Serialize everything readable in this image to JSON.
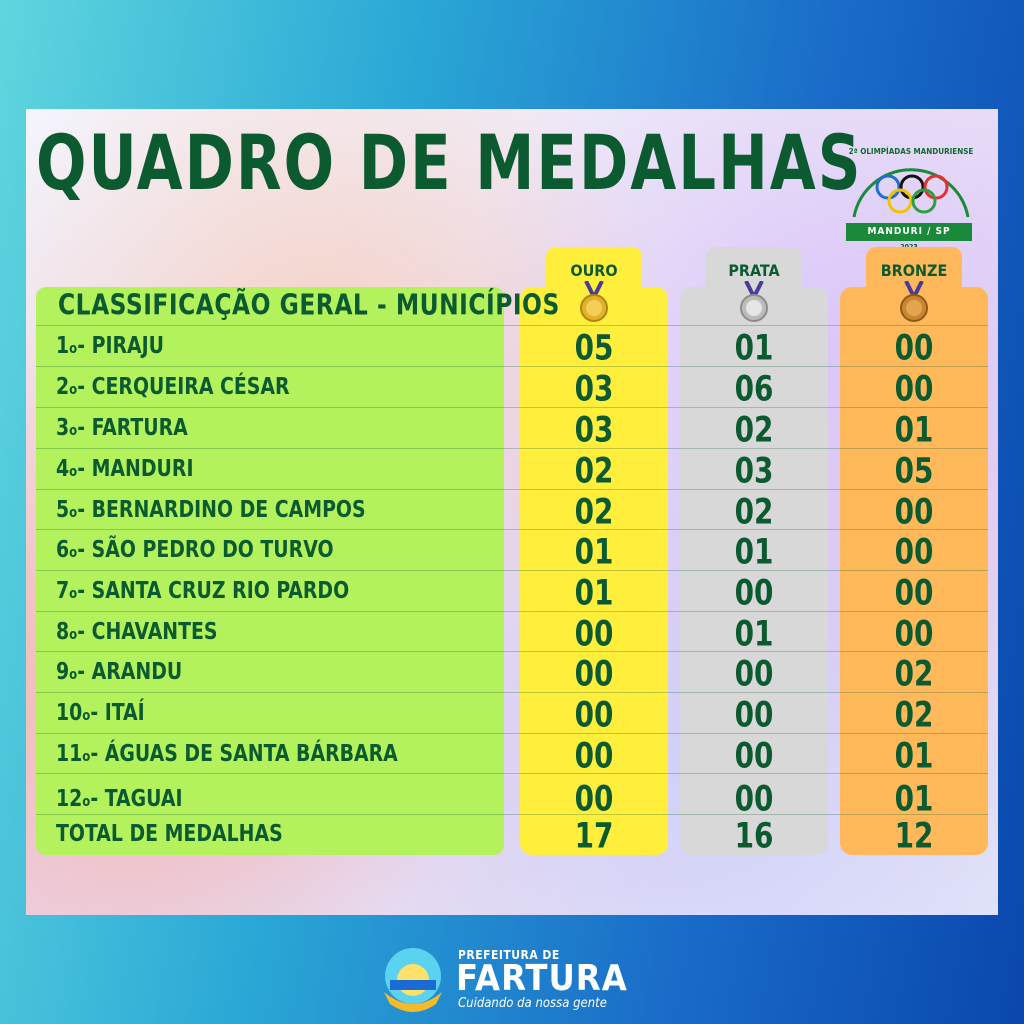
{
  "title": "QUADRO DE MEDALHAS",
  "logo": {
    "arc_text": "2ª OLIMPÍADAS MANDURIENSE",
    "banner": "MANDURI / SP",
    "year": "2023"
  },
  "table": {
    "header": "CLASSIFICAÇÃO GERAL - MUNICÍPIOS",
    "columns": [
      "OURO",
      "PRATA",
      "BRONZE"
    ],
    "rows": [
      {
        "rank": "1",
        "ord": "o",
        "name": "- PIRAJU",
        "gold": "05",
        "silver": "01",
        "bronze": "00"
      },
      {
        "rank": "2",
        "ord": "o",
        "name": "- CERQUEIRA CÉSAR",
        "gold": "03",
        "silver": "06",
        "bronze": "00"
      },
      {
        "rank": "3",
        "ord": "o",
        "name": "- FARTURA",
        "gold": "03",
        "silver": "02",
        "bronze": "01"
      },
      {
        "rank": "4",
        "ord": "o",
        "name": "- MANDURI",
        "gold": "02",
        "silver": "03",
        "bronze": "05"
      },
      {
        "rank": "5",
        "ord": "o",
        "name": "- BERNARDINO DE CAMPOS",
        "gold": "02",
        "silver": "02",
        "bronze": "00"
      },
      {
        "rank": "6",
        "ord": "o",
        "name": "- SÃO PEDRO DO TURVO",
        "gold": "01",
        "silver": "01",
        "bronze": "00"
      },
      {
        "rank": "7",
        "ord": "o",
        "name": "- SANTA CRUZ RIO PARDO",
        "gold": "01",
        "silver": "00",
        "bronze": "00"
      },
      {
        "rank": "8",
        "ord": "o",
        "name": "- CHAVANTES",
        "gold": "00",
        "silver": "01",
        "bronze": "00"
      },
      {
        "rank": "9",
        "ord": "o",
        "name": "- ARANDU",
        "gold": "00",
        "silver": "00",
        "bronze": "02"
      },
      {
        "rank": "10",
        "ord": "o",
        "name": "- ITAÍ",
        "gold": "00",
        "silver": "00",
        "bronze": "02"
      },
      {
        "rank": "11",
        "ord": "o",
        "name": "- ÁGUAS DE SANTA BÁRBARA",
        "gold": "00",
        "silver": "00",
        "bronze": "01"
      },
      {
        "rank": "12",
        "ord": "o",
        "name": "- TAGUAI",
        "gold": "00",
        "silver": "00",
        "bronze": "01"
      }
    ],
    "total": {
      "label": "TOTAL DE MEDALHAS",
      "gold": "17",
      "silver": "16",
      "bronze": "12"
    }
  },
  "footer": {
    "prefix": "PREFEITURA DE",
    "name": "FARTURA",
    "slogan": "Cuidando da nossa gente"
  },
  "colors": {
    "gold": "#ffef3c",
    "silver": "#d8d8d8",
    "bronze": "#ffb95a",
    "green_panel": "#b3f25c",
    "text_green": "#0c5a30"
  }
}
